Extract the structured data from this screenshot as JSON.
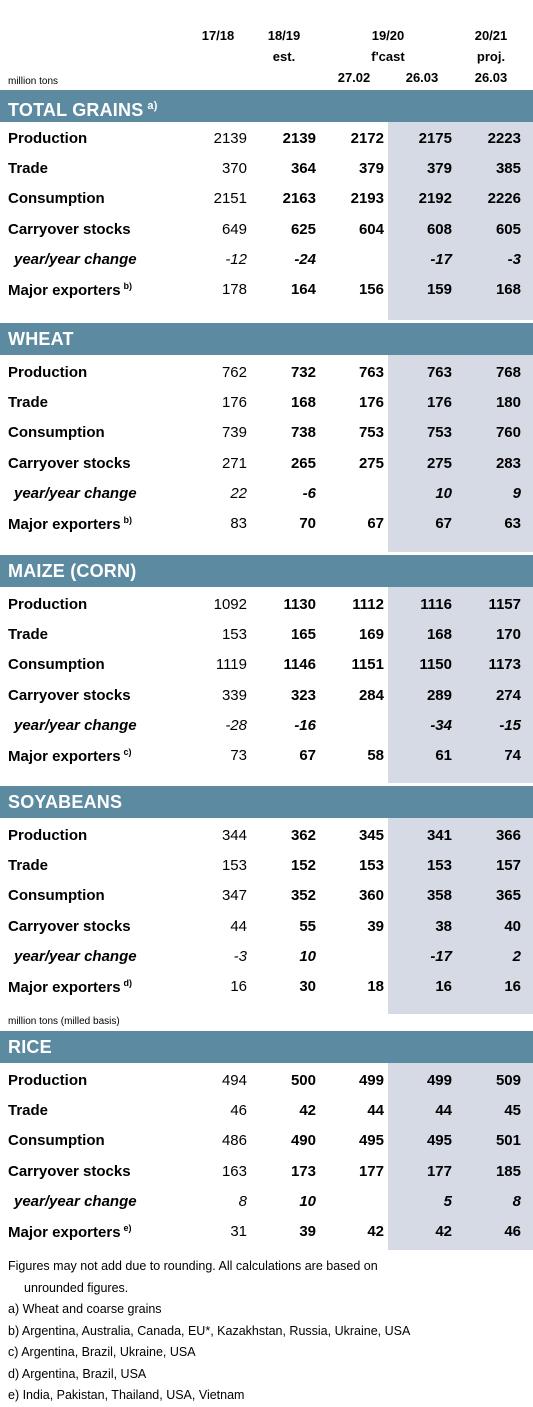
{
  "header": {
    "col1": "17/18",
    "col2a": "18/19",
    "col2b": "est.",
    "col34": "19/20",
    "col34b": "f'cast",
    "col3c": "27.02",
    "col4c": "26.03",
    "col5a": "20/21",
    "col5b": "proj.",
    "col5c": "26.03",
    "unit": "million tons"
  },
  "sections": [
    {
      "title": "TOTAL GRAINS",
      "note": "a)",
      "rows": [
        {
          "label": "Production",
          "values": [
            "2139",
            "2139",
            "2172",
            "2175",
            "2223"
          ]
        },
        {
          "label": "Trade",
          "values": [
            "370",
            "364",
            "379",
            "379",
            "385"
          ]
        },
        {
          "label": "Consumption",
          "values": [
            "2151",
            "2163",
            "2193",
            "2192",
            "2226"
          ]
        },
        {
          "label": "Carryover stocks",
          "values": [
            "649",
            "625",
            "604",
            "608",
            "605"
          ]
        },
        {
          "label": "year/year change",
          "values": [
            "-12",
            "-24",
            "",
            "-17",
            "-3"
          ]
        },
        {
          "label": "Major exporters",
          "note": "b)",
          "values": [
            "178",
            "164",
            "156",
            "159",
            "168"
          ]
        }
      ]
    },
    {
      "title": "WHEAT",
      "note": "",
      "rows": [
        {
          "label": "Production",
          "values": [
            "762",
            "732",
            "763",
            "763",
            "768"
          ]
        },
        {
          "label": "Trade",
          "values": [
            "176",
            "168",
            "176",
            "176",
            "180"
          ]
        },
        {
          "label": "Consumption",
          "values": [
            "739",
            "738",
            "753",
            "753",
            "760"
          ]
        },
        {
          "label": "Carryover stocks",
          "values": [
            "271",
            "265",
            "275",
            "275",
            "283"
          ]
        },
        {
          "label": "year/year change",
          "values": [
            "22",
            "-6",
            "",
            "10",
            "9"
          ]
        },
        {
          "label": "Major exporters",
          "note": "b)",
          "values": [
            "83",
            "70",
            "67",
            "67",
            "63"
          ]
        }
      ]
    },
    {
      "title": "MAIZE (CORN)",
      "note": "",
      "rows": [
        {
          "label": "Production",
          "values": [
            "1092",
            "1130",
            "1112",
            "1116",
            "1157"
          ]
        },
        {
          "label": "Trade",
          "values": [
            "153",
            "165",
            "169",
            "168",
            "170"
          ]
        },
        {
          "label": "Consumption",
          "values": [
            "1119",
            "1146",
            "1151",
            "1150",
            "1173"
          ]
        },
        {
          "label": "Carryover stocks",
          "values": [
            "339",
            "323",
            "284",
            "289",
            "274"
          ]
        },
        {
          "label": "year/year change",
          "values": [
            "-28",
            "-16",
            "",
            "-34",
            "-15"
          ]
        },
        {
          "label": "Major exporters",
          "note": "c)",
          "values": [
            "73",
            "67",
            "58",
            "61",
            "74"
          ]
        }
      ]
    },
    {
      "title": "SOYABEANS",
      "note": "",
      "rows": [
        {
          "label": "Production",
          "values": [
            "344",
            "362",
            "345",
            "341",
            "366"
          ]
        },
        {
          "label": "Trade",
          "values": [
            "153",
            "152",
            "153",
            "153",
            "157"
          ]
        },
        {
          "label": "Consumption",
          "values": [
            "347",
            "352",
            "360",
            "358",
            "365"
          ]
        },
        {
          "label": "Carryover stocks",
          "values": [
            "44",
            "55",
            "39",
            "38",
            "40"
          ]
        },
        {
          "label": "year/year change",
          "values": [
            "-3",
            "10",
            "",
            "-17",
            "2"
          ]
        },
        {
          "label": "Major exporters",
          "note": "d)",
          "values": [
            "16",
            "30",
            "18",
            "16",
            "16"
          ]
        }
      ]
    },
    {
      "title": "RICE",
      "note": "",
      "unit": "million tons (milled basis)",
      "rows": [
        {
          "label": "Production",
          "values": [
            "494",
            "500",
            "499",
            "499",
            "509"
          ]
        },
        {
          "label": "Trade",
          "values": [
            "46",
            "42",
            "44",
            "44",
            "45"
          ]
        },
        {
          "label": "Consumption",
          "values": [
            "486",
            "490",
            "495",
            "495",
            "501"
          ]
        },
        {
          "label": "Carryover stocks",
          "values": [
            "163",
            "173",
            "177",
            "177",
            "185"
          ]
        },
        {
          "label": "year/year change",
          "values": [
            "8",
            "10",
            "",
            "5",
            "8"
          ]
        },
        {
          "label": "Major exporters",
          "note": "e)",
          "values": [
            "31",
            "39",
            "42",
            "42",
            "46"
          ]
        }
      ]
    }
  ],
  "notes": {
    "line1": "Figures may not add due to rounding. All calculations are based on",
    "line2": "unrounded figures.",
    "a": "a) Wheat and coarse grains",
    "b": "b) Argentina, Australia, Canada, EU*, Kazakhstan, Russia, Ukraine, USA",
    "c": "c) Argentina, Brazil, Ukraine, USA",
    "d": "d) Argentina, Brazil, USA",
    "e": "e) India, Pakistan, Thailand, USA, Vietnam"
  },
  "colors": {
    "band": "#5c8aa1",
    "shade": "#d5dae4"
  }
}
